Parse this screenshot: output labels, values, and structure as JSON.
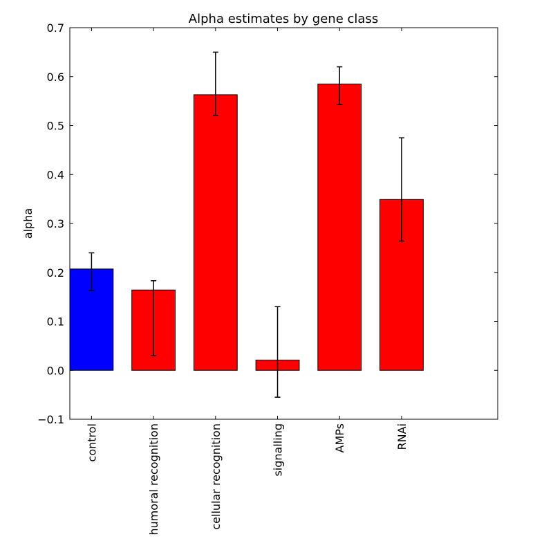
{
  "chart_data": {
    "type": "bar",
    "title": "Alpha estimates by gene class",
    "xlabel": "",
    "ylabel": "alpha",
    "categories": [
      "control",
      "humoral recognition",
      "cellular recognition",
      "signalling",
      "AMPs",
      "RNAi"
    ],
    "values": [
      0.207,
      0.164,
      0.563,
      0.021,
      0.585,
      0.349
    ],
    "error_low": [
      0.163,
      0.03,
      0.521,
      -0.055,
      0.543,
      0.264
    ],
    "error_high": [
      0.24,
      0.183,
      0.65,
      0.13,
      0.62,
      0.475
    ],
    "colors": [
      "#0000ff",
      "#ff0000",
      "#ff0000",
      "#ff0000",
      "#ff0000",
      "#ff0000"
    ],
    "ylim": [
      -0.1,
      0.7
    ],
    "yticks": [
      -0.1,
      0.0,
      0.1,
      0.2,
      0.3,
      0.4,
      0.5,
      0.6,
      0.7
    ],
    "ytick_labels": [
      "−0.1",
      "0.0",
      "0.1",
      "0.2",
      "0.3",
      "0.4",
      "0.5",
      "0.6",
      "0.7"
    ],
    "grid": false,
    "legend": "none"
  }
}
